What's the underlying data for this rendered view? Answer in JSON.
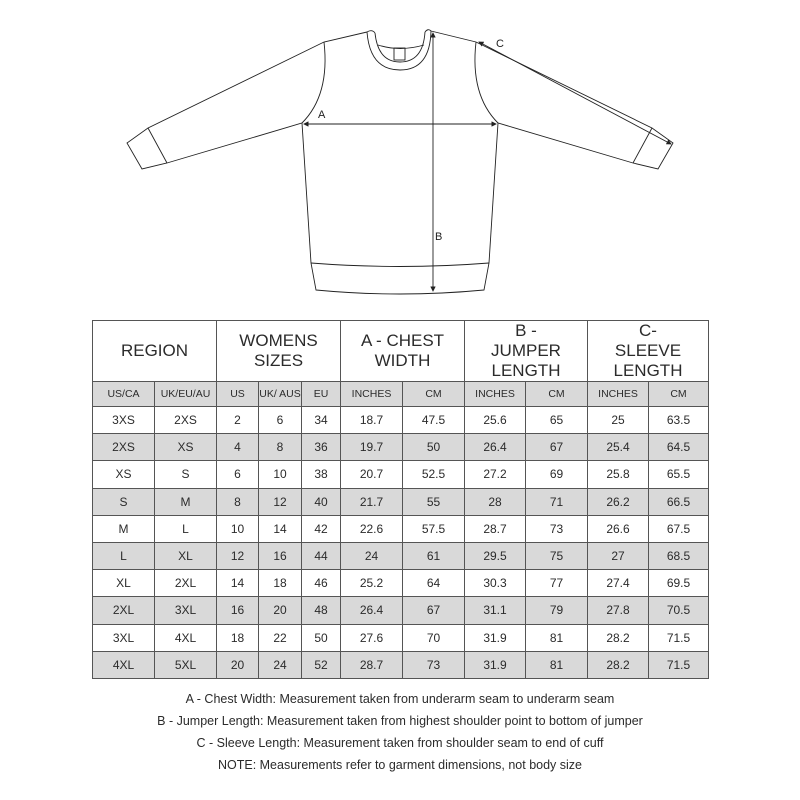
{
  "diagram": {
    "labels": {
      "a": "A",
      "b": "B",
      "c": "C"
    }
  },
  "table": {
    "headers": [
      "REGION",
      "WOMENS SIZES",
      "A - CHEST WIDTH",
      "B - JUMPER LENGTH",
      "C- SLEEVE LENGTH"
    ],
    "subheaders": [
      "US/CA",
      "UK/EU/AU",
      "US",
      "UK/ AUS",
      "EU",
      "INCHES",
      "CM",
      "INCHES",
      "CM",
      "INCHES",
      "CM"
    ],
    "rows": [
      [
        "3XS",
        "2XS",
        "2",
        "6",
        "34",
        "18.7",
        "47.5",
        "25.6",
        "65",
        "25",
        "63.5"
      ],
      [
        "2XS",
        "XS",
        "4",
        "8",
        "36",
        "19.7",
        "50",
        "26.4",
        "67",
        "25.4",
        "64.5"
      ],
      [
        "XS",
        "S",
        "6",
        "10",
        "38",
        "20.7",
        "52.5",
        "27.2",
        "69",
        "25.8",
        "65.5"
      ],
      [
        "S",
        "M",
        "8",
        "12",
        "40",
        "21.7",
        "55",
        "28",
        "71",
        "26.2",
        "66.5"
      ],
      [
        "M",
        "L",
        "10",
        "14",
        "42",
        "22.6",
        "57.5",
        "28.7",
        "73",
        "26.6",
        "67.5"
      ],
      [
        "L",
        "XL",
        "12",
        "16",
        "44",
        "24",
        "61",
        "29.5",
        "75",
        "27",
        "68.5"
      ],
      [
        "XL",
        "2XL",
        "14",
        "18",
        "46",
        "25.2",
        "64",
        "30.3",
        "77",
        "27.4",
        "69.5"
      ],
      [
        "2XL",
        "3XL",
        "16",
        "20",
        "48",
        "26.4",
        "67",
        "31.1",
        "79",
        "27.8",
        "70.5"
      ],
      [
        "3XL",
        "4XL",
        "18",
        "22",
        "50",
        "27.6",
        "70",
        "31.9",
        "81",
        "28.2",
        "71.5"
      ],
      [
        "4XL",
        "5XL",
        "20",
        "24",
        "52",
        "28.7",
        "73",
        "31.9",
        "81",
        "28.2",
        "71.5"
      ]
    ],
    "stripe_color": "#d9d9d9"
  },
  "notes": [
    "A - Chest Width: Measurement taken from underarm seam to underarm seam",
    "B - Jumper Length: Measurement taken from highest shoulder point to bottom of jumper",
    "C - Sleeve Length: Measurement taken from shoulder seam to end of cuff",
    "NOTE: Measurements refer to garment dimensions, not body size"
  ]
}
